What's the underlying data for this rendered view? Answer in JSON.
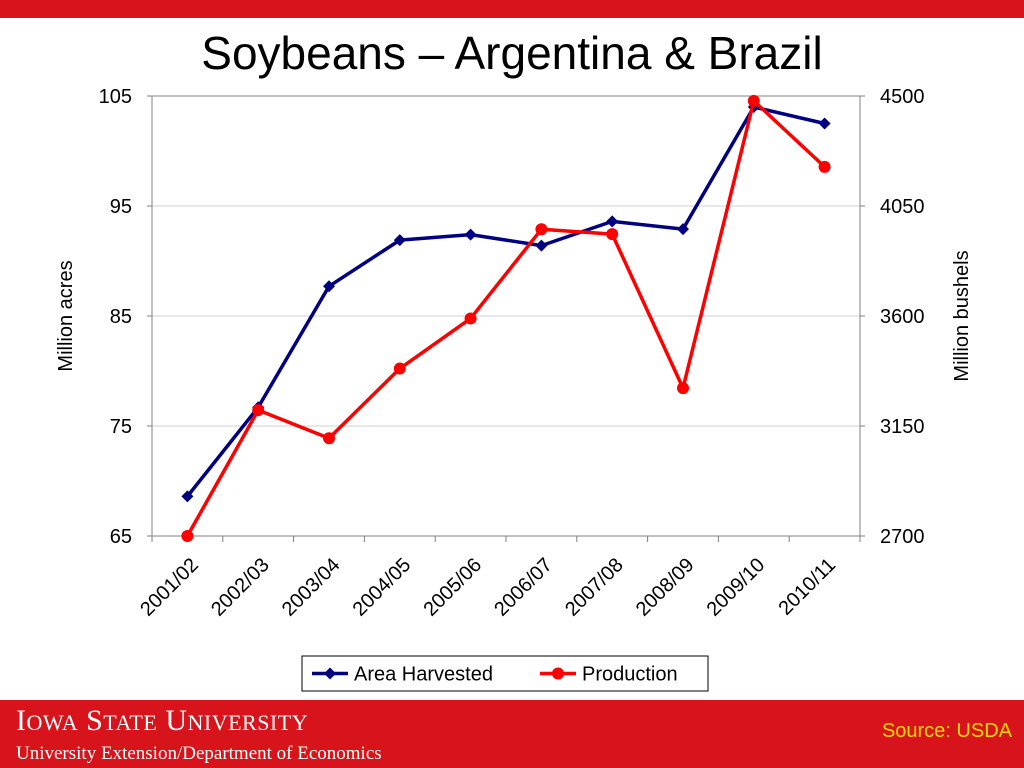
{
  "slide": {
    "title": "Soybeans – Argentina & Brazil",
    "colors": {
      "brand_red": "#d7141c",
      "source_text": "#ffd700"
    }
  },
  "footer": {
    "university_first_letter_1": "I",
    "university_rest_1": "OWA",
    "university_first_letter_2": "S",
    "university_rest_2": "TATE",
    "university_first_letter_3": "U",
    "university_rest_3": "NIVERSITY",
    "department": "University Extension/Department of Economics",
    "source": "Source: USDA"
  },
  "chart_data": {
    "type": "line",
    "title": "Soybeans – Argentina & Brazil",
    "categories": [
      "2001/02",
      "2002/03",
      "2003/04",
      "2004/05",
      "2005/06",
      "2006/07",
      "2007/08",
      "2008/09",
      "2009/10",
      "2010/11"
    ],
    "y_left": {
      "label": "Million acres",
      "range": [
        65,
        105
      ],
      "ticks": [
        65,
        75,
        85,
        95,
        105
      ]
    },
    "y_right": {
      "label": "Million bushels",
      "range": [
        2700,
        4500
      ],
      "ticks": [
        2700,
        3150,
        3600,
        4050,
        4500
      ]
    },
    "grid": "horizontal",
    "legend_position": "bottom",
    "series": [
      {
        "name": "Area Harvested",
        "axis": "left",
        "color": "#000080",
        "marker": "diamond",
        "values": [
          68.6,
          76.7,
          87.7,
          91.9,
          92.4,
          91.4,
          93.6,
          92.9,
          104.0,
          102.5
        ]
      },
      {
        "name": "Production",
        "axis": "right",
        "color": "#ff0000",
        "marker": "circle",
        "values": [
          2700,
          3215,
          3100,
          3385,
          3590,
          3955,
          3935,
          3305,
          4480,
          4210
        ]
      }
    ]
  }
}
